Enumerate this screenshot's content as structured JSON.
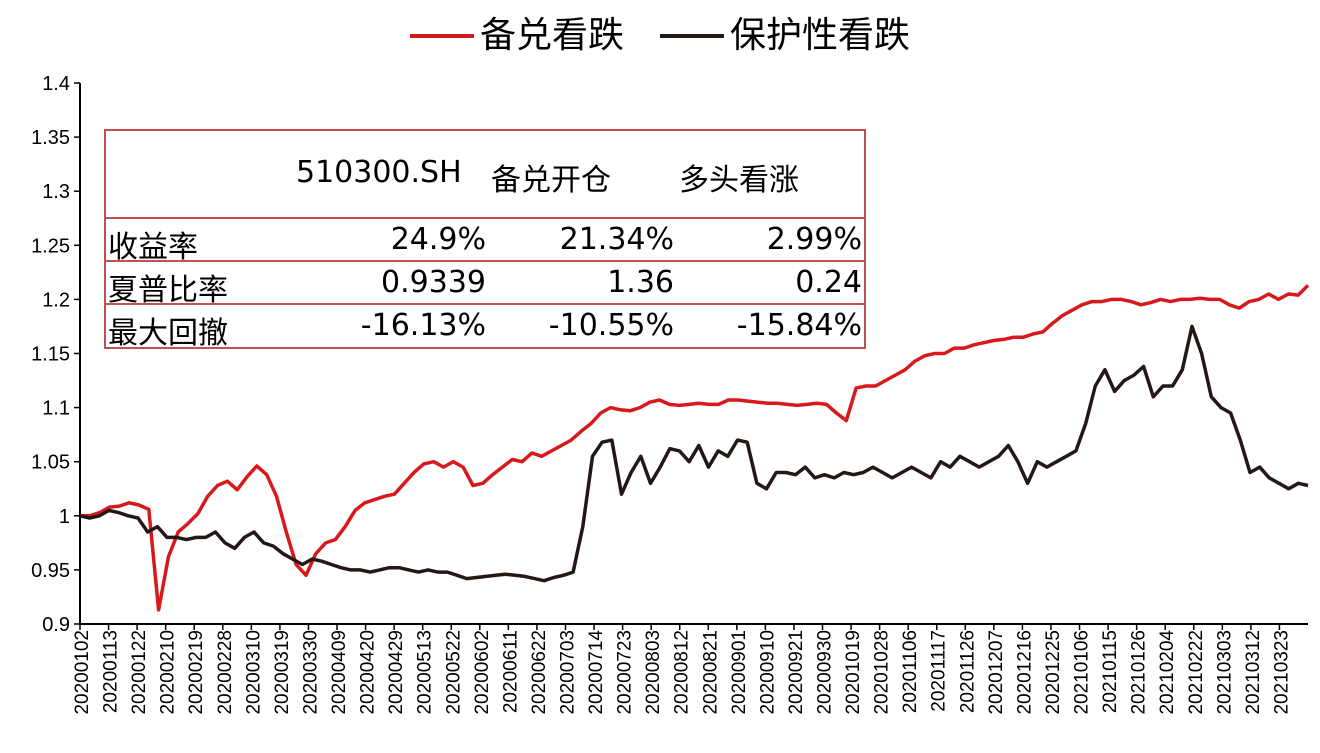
{
  "chart_data": {
    "type": "line",
    "legend": [
      {
        "name": "备兑看跌",
        "color": "#d7191c"
      },
      {
        "name": "保护性看跌",
        "color": "#231815"
      }
    ],
    "ylim": [
      0.9,
      1.4
    ],
    "yticks": [
      "0.9",
      "0.95",
      "1",
      "1.05",
      "1.1",
      "1.15",
      "1.2",
      "1.25",
      "1.3",
      "1.35",
      "1.4"
    ],
    "xticks": [
      "20200102",
      "20200113",
      "20200122",
      "20200210",
      "20200219",
      "20200228",
      "20200310",
      "20200319",
      "20200330",
      "20200409",
      "20200420",
      "20200429",
      "20200513",
      "20200522",
      "20200602",
      "20200611",
      "20200622",
      "20200703",
      "20200714",
      "20200723",
      "20200803",
      "20200812",
      "20200821",
      "20200901",
      "20200910",
      "20200921",
      "20200930",
      "20201019",
      "20201028",
      "20201106",
      "20201117",
      "20201126",
      "20201207",
      "20201216",
      "20201225",
      "20210106",
      "20210115",
      "20210126",
      "20210204",
      "20210222",
      "20210303",
      "20210312",
      "20210323"
    ],
    "series": [
      {
        "name": "备兑看跌",
        "color": "#d7191c",
        "values": [
          1.0,
          1.0,
          1.003,
          1.008,
          1.009,
          1.012,
          1.01,
          1.006,
          0.913,
          0.962,
          0.985,
          0.993,
          1.002,
          1.018,
          1.028,
          1.032,
          1.024,
          1.036,
          1.046,
          1.038,
          1.018,
          0.985,
          0.955,
          0.945,
          0.965,
          0.975,
          0.978,
          0.99,
          1.005,
          1.012,
          1.015,
          1.018,
          1.02,
          1.03,
          1.04,
          1.048,
          1.05,
          1.045,
          1.05,
          1.045,
          1.028,
          1.03,
          1.038,
          1.045,
          1.052,
          1.05,
          1.058,
          1.055,
          1.06,
          1.065,
          1.07,
          1.078,
          1.085,
          1.095,
          1.1,
          1.098,
          1.097,
          1.1,
          1.105,
          1.107,
          1.103,
          1.102,
          1.103,
          1.104,
          1.103,
          1.103,
          1.107,
          1.107,
          1.106,
          1.105,
          1.104,
          1.104,
          1.103,
          1.102,
          1.103,
          1.104,
          1.103,
          1.095,
          1.088,
          1.118,
          1.12,
          1.12,
          1.125,
          1.13,
          1.135,
          1.143,
          1.148,
          1.15,
          1.15,
          1.155,
          1.155,
          1.158,
          1.16,
          1.162,
          1.163,
          1.165,
          1.165,
          1.168,
          1.17,
          1.178,
          1.185,
          1.19,
          1.195,
          1.198,
          1.198,
          1.2,
          1.2,
          1.198,
          1.195,
          1.197,
          1.2,
          1.198,
          1.2,
          1.2,
          1.201,
          1.2,
          1.2,
          1.195,
          1.192,
          1.198,
          1.2,
          1.205,
          1.2,
          1.205,
          1.204,
          1.213
        ]
      },
      {
        "name": "保护性看跌",
        "color": "#231815",
        "values": [
          1.0,
          0.998,
          1.0,
          1.005,
          1.003,
          1.0,
          0.998,
          0.985,
          0.99,
          0.98,
          0.98,
          0.978,
          0.98,
          0.98,
          0.985,
          0.975,
          0.97,
          0.98,
          0.985,
          0.975,
          0.972,
          0.965,
          0.96,
          0.955,
          0.96,
          0.958,
          0.955,
          0.952,
          0.95,
          0.95,
          0.948,
          0.95,
          0.952,
          0.952,
          0.95,
          0.948,
          0.95,
          0.948,
          0.948,
          0.945,
          0.942,
          0.943,
          0.944,
          0.945,
          0.946,
          0.945,
          0.944,
          0.942,
          0.94,
          0.943,
          0.945,
          0.948,
          0.99,
          1.055,
          1.068,
          1.07,
          1.02,
          1.04,
          1.055,
          1.03,
          1.045,
          1.062,
          1.06,
          1.05,
          1.065,
          1.045,
          1.06,
          1.055,
          1.07,
          1.068,
          1.03,
          1.025,
          1.04,
          1.04,
          1.038,
          1.045,
          1.035,
          1.038,
          1.035,
          1.04,
          1.038,
          1.04,
          1.045,
          1.04,
          1.035,
          1.04,
          1.045,
          1.04,
          1.035,
          1.05,
          1.045,
          1.055,
          1.05,
          1.045,
          1.05,
          1.055,
          1.065,
          1.05,
          1.03,
          1.05,
          1.045,
          1.05,
          1.055,
          1.06,
          1.085,
          1.12,
          1.135,
          1.115,
          1.125,
          1.13,
          1.138,
          1.11,
          1.12,
          1.12,
          1.135,
          1.175,
          1.15,
          1.11,
          1.1,
          1.095,
          1.07,
          1.04,
          1.045,
          1.035,
          1.03,
          1.025,
          1.03,
          1.028
        ]
      }
    ],
    "table": {
      "headers": [
        "510300.SH",
        "备兑开仓",
        "多头看涨"
      ],
      "rows": [
        {
          "label": "收益率",
          "values": [
            "24.9%",
            "21.34%",
            "2.99%"
          ]
        },
        {
          "label": "夏普比率",
          "values": [
            "0.9339",
            "1.36",
            "0.24"
          ]
        },
        {
          "label": "最大回撤",
          "values": [
            "-16.13%",
            "-10.55%",
            "-15.84%"
          ]
        }
      ]
    }
  }
}
